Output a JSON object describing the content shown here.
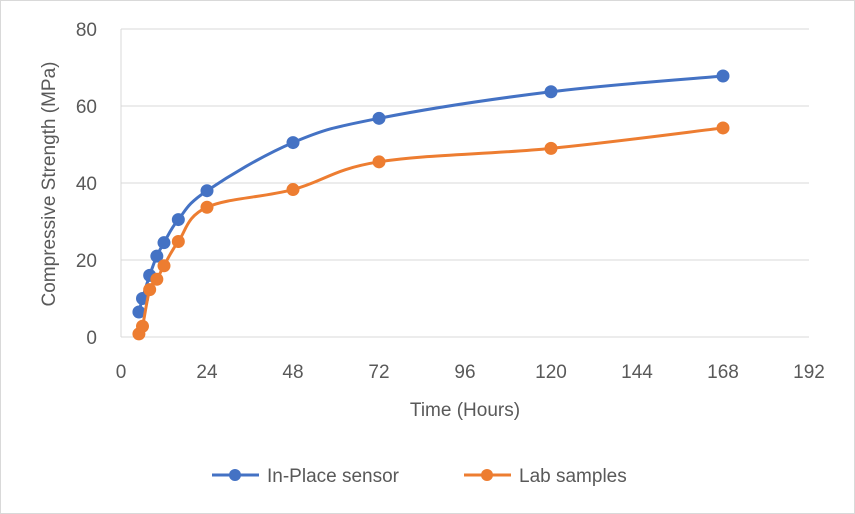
{
  "colors": {
    "series_1": "#4472c4",
    "series_2": "#ed7d31",
    "gridline": "#d9d9d9",
    "axis": "#d9d9d9",
    "text": "#595959"
  },
  "chart_data": {
    "type": "scatter",
    "title": "",
    "xlabel": "Time (Hours)",
    "ylabel": "Compressive Strength (MPa)",
    "xlim": [
      0,
      192
    ],
    "ylim": [
      0,
      80
    ],
    "x_ticks": [
      "0",
      "24",
      "48",
      "72",
      "96",
      "120",
      "144",
      "168",
      "192"
    ],
    "y_ticks": [
      "0",
      "20",
      "40",
      "60",
      "80"
    ],
    "grid": "horizontal",
    "legend_position": "bottom",
    "line_style": "smooth",
    "markers": true,
    "series": [
      {
        "name": "In-Place sensor",
        "color": "#4472c4",
        "points": [
          {
            "x": 5,
            "y": 6.5
          },
          {
            "x": 6,
            "y": 10
          },
          {
            "x": 8,
            "y": 16
          },
          {
            "x": 10,
            "y": 21
          },
          {
            "x": 12,
            "y": 24.5
          },
          {
            "x": 16,
            "y": 30.5
          },
          {
            "x": 24,
            "y": 38
          },
          {
            "x": 48,
            "y": 50.5
          },
          {
            "x": 72,
            "y": 56.8
          },
          {
            "x": 120,
            "y": 63.7
          },
          {
            "x": 168,
            "y": 67.8
          }
        ]
      },
      {
        "name": "Lab samples",
        "color": "#ed7d31",
        "points": [
          {
            "x": 5,
            "y": 0.8
          },
          {
            "x": 6,
            "y": 2.8
          },
          {
            "x": 8,
            "y": 12.3
          },
          {
            "x": 10,
            "y": 15
          },
          {
            "x": 12,
            "y": 18.5
          },
          {
            "x": 16,
            "y": 24.8
          },
          {
            "x": 24,
            "y": 33.7
          },
          {
            "x": 48,
            "y": 38.3
          },
          {
            "x": 72,
            "y": 45.5
          },
          {
            "x": 120,
            "y": 49
          },
          {
            "x": 168,
            "y": 54.3
          }
        ]
      }
    ]
  }
}
